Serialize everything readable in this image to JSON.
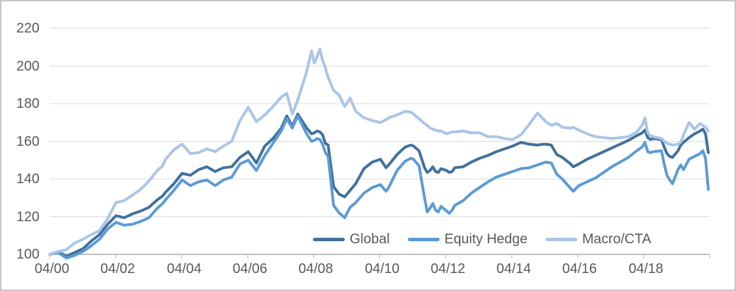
{
  "chart_data": {
    "type": "line",
    "title": "",
    "baseline_index_value": 100,
    "x_tick_labels": [
      "04/00",
      "04/02",
      "04/04",
      "04/06",
      "04/08",
      "04/10",
      "04/12",
      "04/14",
      "04/16",
      "04/18"
    ],
    "y_axis": {
      "ticks": [
        100,
        120,
        140,
        160,
        180,
        200,
        220
      ],
      "min": 100,
      "max": 220
    },
    "grid": true,
    "legend": {
      "position": "inside-bottom-center"
    },
    "t_months": [
      0,
      3,
      6,
      9,
      12,
      15,
      18,
      21,
      24,
      27,
      30,
      33,
      36,
      39,
      41,
      42,
      45,
      48,
      51,
      54,
      57,
      60,
      63,
      66,
      69,
      72,
      75,
      78,
      81,
      84,
      86,
      88,
      90,
      93,
      95,
      96,
      97,
      98,
      99,
      100,
      101,
      103,
      105,
      107,
      109,
      111,
      114,
      117,
      120,
      122,
      123,
      126,
      129,
      131,
      132,
      134,
      136,
      137,
      138,
      139,
      140,
      141,
      142,
      144,
      145,
      146,
      147,
      150,
      153,
      156,
      159,
      162,
      165,
      168,
      171,
      174,
      177,
      179,
      180,
      182,
      184,
      186,
      189,
      190,
      192,
      195,
      198,
      201,
      204,
      207,
      210,
      213,
      215,
      216,
      217,
      218,
      219,
      222,
      223,
      224,
      225,
      226,
      228,
      229,
      230,
      232,
      234,
      236,
      237,
      238,
      239
    ],
    "series": [
      {
        "name": "Global",
        "color": "#41719C",
        "values": [
          100,
          101.5,
          99,
          101,
          103,
          107,
          110.5,
          116,
          120.5,
          119.5,
          121.5,
          123,
          125,
          129,
          131,
          133,
          137.5,
          143,
          142,
          145,
          146.5,
          144,
          146,
          146.5,
          151.5,
          154.5,
          148.5,
          157.5,
          161.5,
          167,
          173.5,
          168,
          174.5,
          167.5,
          164,
          164.5,
          165.5,
          165,
          163.5,
          159,
          158,
          136,
          132,
          130.5,
          134,
          137.5,
          145.5,
          149,
          150.5,
          146,
          147.5,
          153,
          157,
          158,
          157.5,
          155,
          146,
          143.5,
          144.5,
          146.5,
          144,
          143.5,
          145.5,
          144.5,
          143.5,
          144,
          146,
          146.5,
          149,
          151,
          152.5,
          154.5,
          156,
          157.5,
          159.5,
          158.5,
          158,
          158.5,
          158.5,
          158,
          153,
          151.5,
          148,
          146.5,
          148,
          150.5,
          152.5,
          154.5,
          156.5,
          158.5,
          160.5,
          163,
          164.5,
          166,
          162,
          161,
          161.5,
          161,
          157,
          153.5,
          152,
          151.5,
          155,
          158,
          159.5,
          162,
          164,
          165.5,
          166.5,
          164,
          154
        ]
      },
      {
        "name": "Equity Hedge",
        "color": "#5B9BD5",
        "values": [
          100,
          101,
          98,
          99.5,
          101.5,
          104.5,
          108,
          113.5,
          117,
          115.5,
          116,
          117.5,
          119.5,
          124.5,
          127,
          129,
          134,
          139.5,
          136.5,
          138.5,
          139.5,
          136.5,
          139.5,
          141,
          148,
          150,
          144.5,
          152.5,
          159,
          165.5,
          172,
          167,
          173.5,
          164.5,
          160,
          160.5,
          161.5,
          161,
          158.5,
          154,
          152,
          126,
          122,
          119.5,
          125,
          127.5,
          132.5,
          135.5,
          137,
          133.5,
          135.5,
          144.5,
          149.5,
          151,
          150.5,
          147,
          130,
          122.5,
          124.5,
          127,
          123.5,
          122.5,
          125.5,
          123,
          121.8,
          123.5,
          126,
          128.5,
          132.5,
          135.5,
          138.5,
          141,
          142.5,
          144,
          145.5,
          146,
          147.5,
          148.5,
          149,
          148.5,
          142.5,
          140,
          135,
          133.5,
          136.5,
          138.5,
          140.5,
          143.5,
          146.5,
          149,
          151.5,
          155,
          157,
          159.5,
          154.5,
          154,
          154.5,
          155,
          148,
          142,
          139.5,
          137.5,
          145,
          147.5,
          145,
          150.5,
          152,
          153.5,
          155,
          151,
          134.5
        ]
      },
      {
        "name": "Macro/CTA",
        "color": "#A9C5E8",
        "values": [
          100,
          101.5,
          102.5,
          106,
          108,
          110.5,
          112.5,
          119,
          127.5,
          128.5,
          131.5,
          134.5,
          139,
          144.5,
          147,
          150.5,
          155.5,
          158.5,
          153.5,
          154,
          156,
          154.5,
          157.5,
          160,
          171,
          178,
          170.5,
          174,
          178.5,
          183.5,
          185.5,
          174.5,
          182,
          196,
          208,
          201.5,
          205,
          209,
          203,
          199,
          194,
          187,
          184.5,
          178.5,
          183,
          176,
          172.5,
          171,
          170,
          171.5,
          172.5,
          174,
          176,
          175.5,
          174.5,
          172,
          169.5,
          168.5,
          167,
          166.5,
          166,
          165.5,
          165.5,
          164,
          164.5,
          165,
          165,
          165.5,
          164.5,
          164.5,
          162.5,
          162.5,
          161.5,
          161,
          163.5,
          169,
          175,
          172,
          170.5,
          168.5,
          169.5,
          167.5,
          167,
          167.5,
          166,
          164,
          162.5,
          162,
          161.5,
          162,
          162.5,
          165,
          168.5,
          172.5,
          164.5,
          163,
          162.5,
          161.5,
          160,
          159,
          158.5,
          158,
          158.5,
          159.5,
          163.5,
          170,
          166.5,
          169.5,
          168.5,
          167.5,
          165.5
        ]
      }
    ]
  },
  "colors": {
    "background": "#FFFFFF",
    "frame_border": "#C7C7C7",
    "gridline": "#D9D9D9",
    "axis_line": "#BFBFBF",
    "tick_text": "#595959"
  }
}
